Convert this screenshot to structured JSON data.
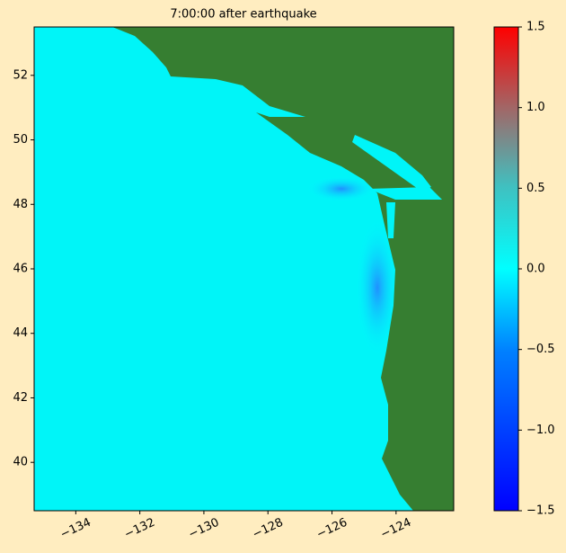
{
  "chart_data": {
    "type": "map",
    "title": "7:00:00 after earthquake",
    "xlim": [
      -135.3,
      -122.2
    ],
    "ylim": [
      38.5,
      53.5
    ],
    "xticks": [
      {
        "value": -134,
        "label": "−134"
      },
      {
        "value": -132,
        "label": "−132"
      },
      {
        "value": -130,
        "label": "−130"
      },
      {
        "value": -128,
        "label": "−128"
      },
      {
        "value": -126,
        "label": "−126"
      },
      {
        "value": -124,
        "label": "−124"
      }
    ],
    "yticks": [
      40,
      42,
      44,
      46,
      48,
      50,
      52
    ],
    "colorbar": {
      "lim": [
        -1.5,
        1.5
      ],
      "ticks": [
        {
          "value": -1.5,
          "label": "−1.5"
        },
        {
          "value": -1.0,
          "label": "−1.0"
        },
        {
          "value": -0.5,
          "label": "−0.5"
        },
        {
          "value": 0.0,
          "label": "0.0"
        },
        {
          "value": 0.5,
          "label": "0.5"
        },
        {
          "value": 1.0,
          "label": "1.0"
        },
        {
          "value": 1.5,
          "label": "1.5"
        }
      ]
    }
  }
}
